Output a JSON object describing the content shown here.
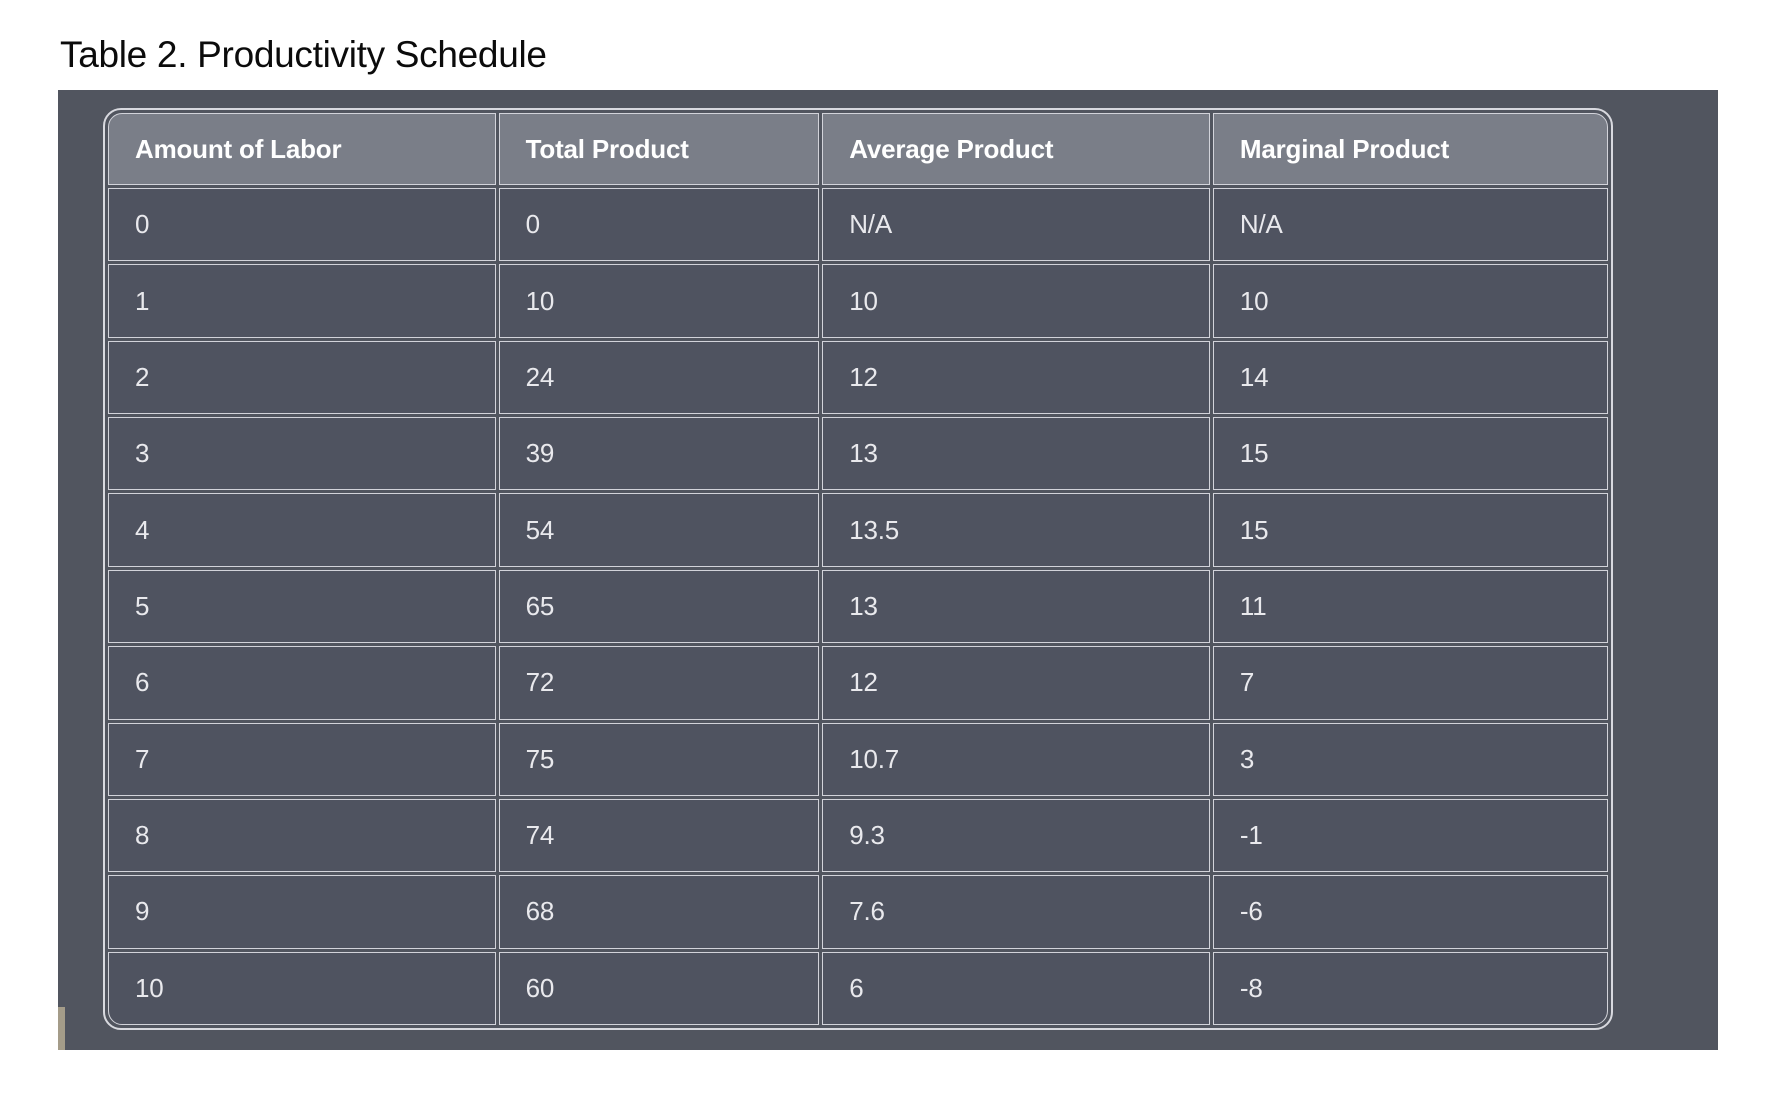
{
  "title": "Table 2. Productivity Schedule",
  "table": {
    "headers": [
      "Amount of Labor",
      "Total Product",
      "Average Product",
      "Marginal Product"
    ],
    "rows": [
      [
        "0",
        "0",
        "N/A",
        "N/A"
      ],
      [
        "1",
        "10",
        "10",
        "10"
      ],
      [
        "2",
        "24",
        "12",
        "14"
      ],
      [
        "3",
        "39",
        "13",
        "15"
      ],
      [
        "4",
        "54",
        "13.5",
        "15"
      ],
      [
        "5",
        "65",
        "13",
        "11"
      ],
      [
        "6",
        "72",
        "12",
        "7"
      ],
      [
        "7",
        "75",
        "10.7",
        "3"
      ],
      [
        "8",
        "74",
        "9.3",
        "-1"
      ],
      [
        "9",
        "68",
        "7.6",
        "-6"
      ],
      [
        "10",
        "60",
        "6",
        "-8"
      ]
    ]
  },
  "chart_data": {
    "type": "table",
    "title": "Table 2. Productivity Schedule",
    "columns": [
      "Amount of Labor",
      "Total Product",
      "Average Product",
      "Marginal Product"
    ],
    "rows": [
      [
        "0",
        "0",
        "N/A",
        "N/A"
      ],
      [
        "1",
        "10",
        "10",
        "10"
      ],
      [
        "2",
        "24",
        "12",
        "14"
      ],
      [
        "3",
        "39",
        "13",
        "15"
      ],
      [
        "4",
        "54",
        "13.5",
        "15"
      ],
      [
        "5",
        "65",
        "13",
        "11"
      ],
      [
        "6",
        "72",
        "12",
        "7"
      ],
      [
        "7",
        "75",
        "10.7",
        "3"
      ],
      [
        "8",
        "74",
        "9.3",
        "-1"
      ],
      [
        "9",
        "68",
        "7.6",
        "-6"
      ],
      [
        "10",
        "60",
        "6",
        "-8"
      ]
    ]
  },
  "colors": {
    "page_bg": "#ffffff",
    "panel_bg": "#51555f",
    "header_bg": "#7a7e88",
    "cell_bg": "#4f5360",
    "border": "#d2d3da",
    "frame_border": "#d8d9df",
    "header_text": "#ffffff",
    "cell_text": "#e9e9ed",
    "title_text": "#0b0b0b",
    "edge_artifact": "#a49c89"
  }
}
